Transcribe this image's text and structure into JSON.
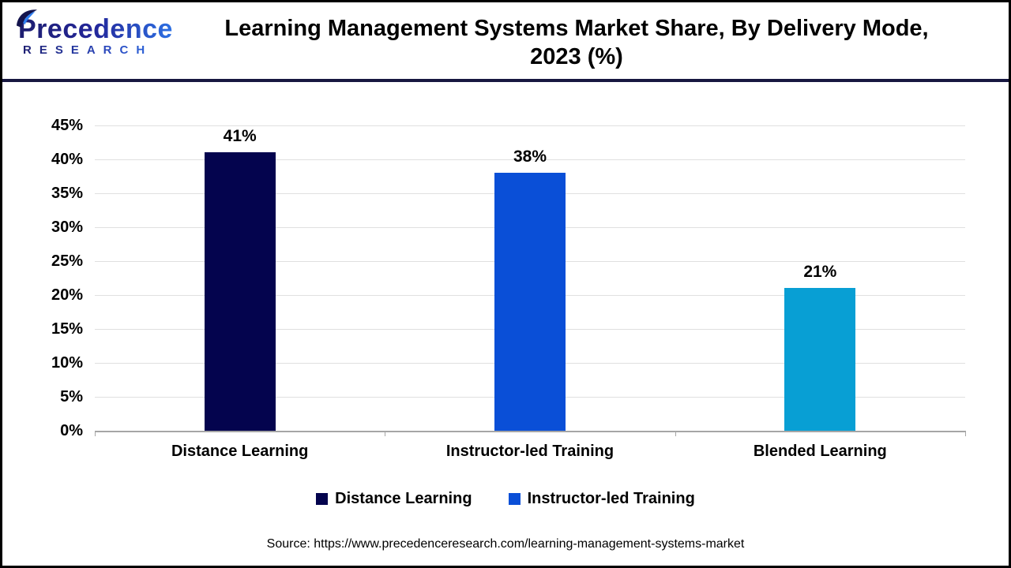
{
  "header": {
    "logo": {
      "name": "Precedence",
      "sub": "RESEARCH"
    },
    "title_line1": "Learning Management Systems Market Share, By Delivery Mode,",
    "title_line2": "2023 (%)"
  },
  "chart_data": {
    "type": "bar",
    "title": "Learning Management Systems Market Share, By Delivery Mode, 2023 (%)",
    "categories": [
      "Distance Learning",
      "Instructor-led Training",
      "Blended Learning"
    ],
    "values": [
      41,
      38,
      21
    ],
    "value_labels": [
      "41%",
      "38%",
      "21%"
    ],
    "bar_colors": [
      "#04044e",
      "#0a4fd7",
      "#089fd4"
    ],
    "xlabel": "",
    "ylabel": "",
    "ylim": [
      0,
      45
    ],
    "ytick_step": 5,
    "ytick_labels": [
      "0%",
      "5%",
      "10%",
      "15%",
      "20%",
      "25%",
      "30%",
      "35%",
      "40%",
      "45%"
    ],
    "grid": true,
    "legend": {
      "position": "bottom",
      "entries": [
        {
          "label": "Distance Learning",
          "color": "#04044e"
        },
        {
          "label": "Instructor-led Training",
          "color": "#0a4fd7"
        }
      ]
    }
  },
  "footer": {
    "source": "Source: https://www.precedenceresearch.com/learning-management-systems-market"
  },
  "colors": {
    "header_rule": "#171740",
    "axis": "#a6a6a6",
    "gridline": "#e0e0e0",
    "logo_dark": "#1d1d6e",
    "logo_light": "#2f7ff2"
  }
}
